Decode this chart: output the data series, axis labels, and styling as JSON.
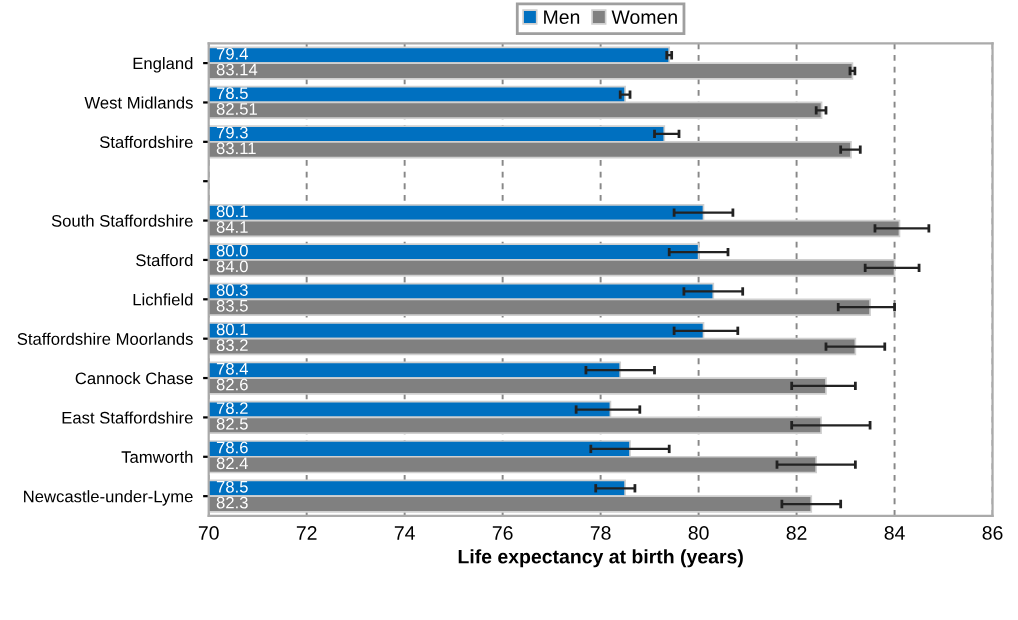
{
  "chart_data": {
    "type": "bar",
    "orientation": "horizontal",
    "categories": [
      "England",
      "West Midlands",
      "Staffordshire",
      null,
      "South Staffordshire",
      "Stafford",
      "Lichfield",
      "Staffordshire Moorlands",
      "Cannock Chase",
      "East Staffordshire",
      "Tamworth",
      "Newcastle-under-Lyme"
    ],
    "series": [
      {
        "name": "Men",
        "color": "#0070c0",
        "values": [
          79.4,
          78.5,
          79.3,
          null,
          80.1,
          80.0,
          80.3,
          80.1,
          78.4,
          78.2,
          78.6,
          78.5
        ],
        "value_labels": [
          "79.4",
          "78.5",
          "79.3",
          null,
          "80.1",
          "80.0",
          "80.3",
          "80.1",
          "78.4",
          "78.2",
          "78.6",
          "78.5"
        ],
        "errors": [
          [
            79.35,
            79.45
          ],
          [
            78.4,
            78.6
          ],
          [
            79.1,
            79.6
          ],
          null,
          [
            79.5,
            80.7
          ],
          [
            79.4,
            80.6
          ],
          [
            79.7,
            80.9
          ],
          [
            79.5,
            80.8
          ],
          [
            77.7,
            79.1
          ],
          [
            77.5,
            78.8
          ],
          [
            77.8,
            79.4
          ],
          [
            77.9,
            78.7
          ]
        ]
      },
      {
        "name": "Women",
        "color": "#808080",
        "values": [
          83.14,
          82.51,
          83.11,
          null,
          84.1,
          84.0,
          83.5,
          83.2,
          82.6,
          82.5,
          82.4,
          82.3
        ],
        "value_labels": [
          "83.14",
          "82.51",
          "83.11",
          null,
          "84.1",
          "84.0",
          "83.5",
          "83.2",
          "82.6",
          "82.5",
          "82.4",
          "82.3"
        ],
        "errors": [
          [
            83.09,
            83.19
          ],
          [
            82.4,
            82.6
          ],
          [
            82.9,
            83.3
          ],
          null,
          [
            83.6,
            84.7
          ],
          [
            83.4,
            84.5
          ],
          [
            82.85,
            84.0
          ],
          [
            82.6,
            83.8
          ],
          [
            81.9,
            83.2
          ],
          [
            81.9,
            83.5
          ],
          [
            81.6,
            83.2
          ],
          [
            81.7,
            82.9
          ]
        ]
      }
    ],
    "xlabel": "Life expectancy at birth (years)",
    "xlim": [
      70,
      86
    ],
    "xticks": [
      70,
      72,
      74,
      76,
      78,
      80,
      82,
      84,
      86
    ],
    "grid": "x",
    "legend": "top"
  }
}
